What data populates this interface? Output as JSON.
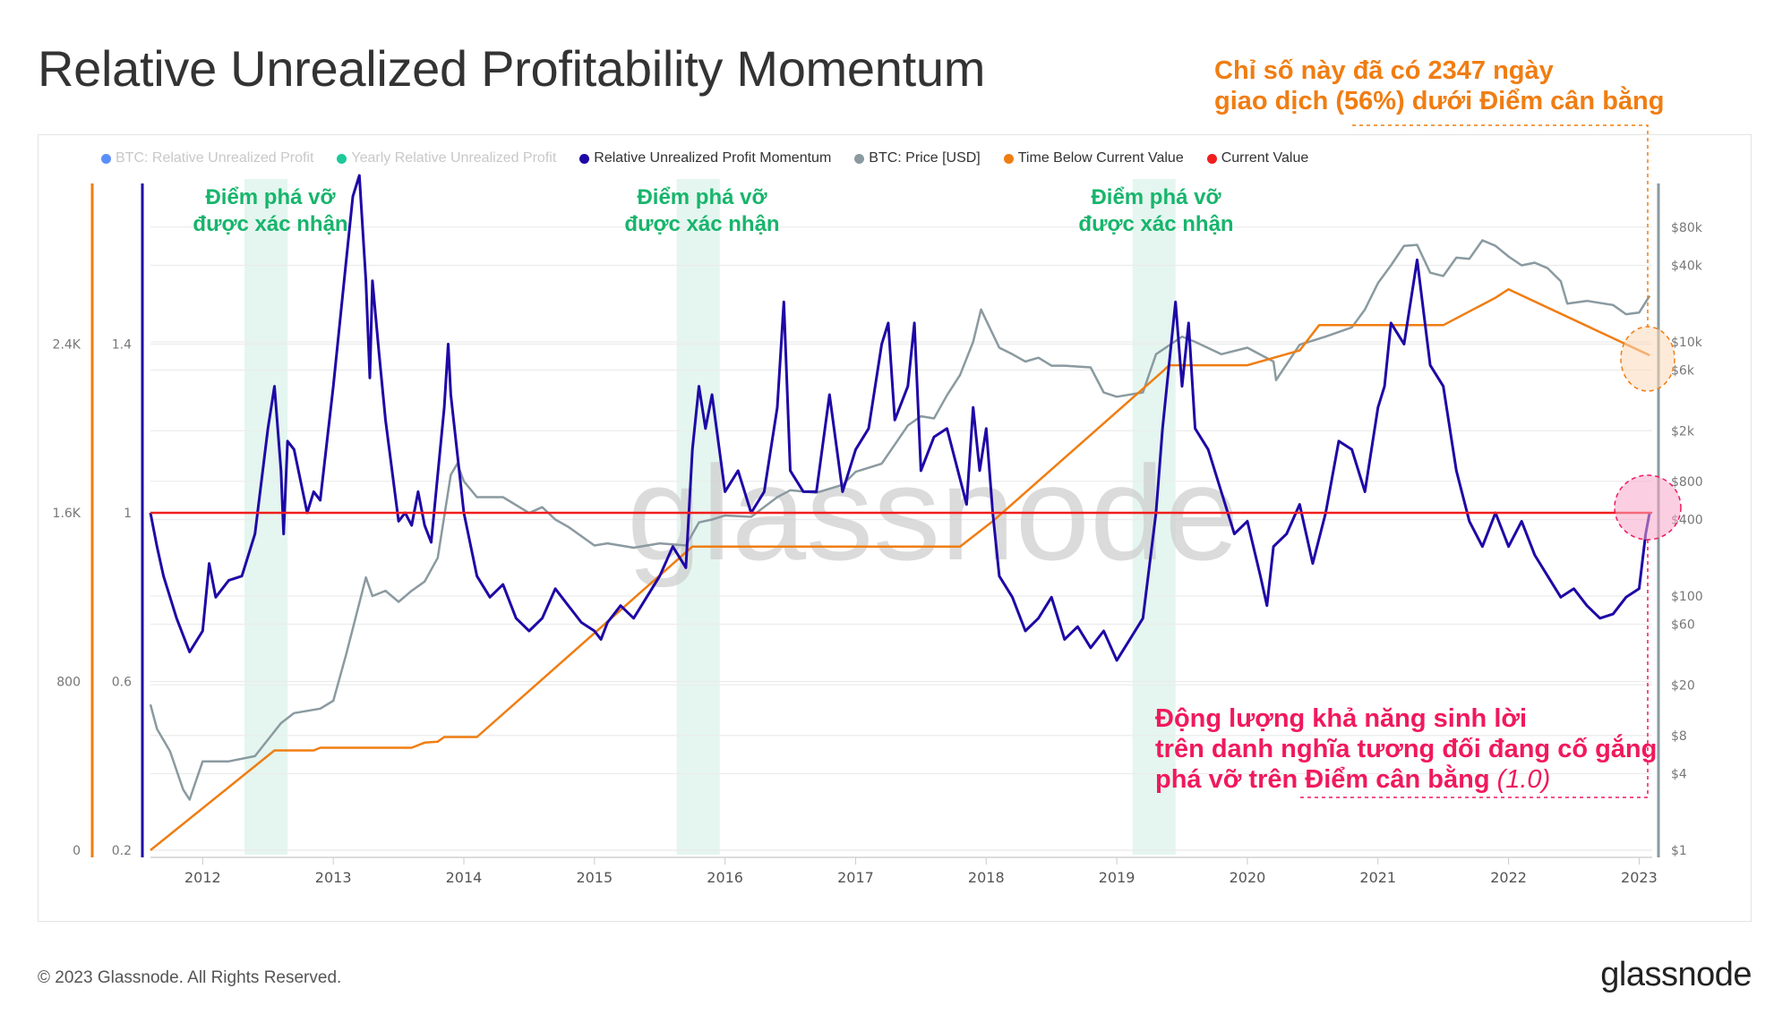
{
  "title": "Relative Unrealized Profitability Momentum",
  "legend": [
    {
      "label": "BTC: Relative Unrealized Profit",
      "color": "#5b8ff9",
      "active": false
    },
    {
      "label": "Yearly Relative Unrealized Profit",
      "color": "#1ec99a",
      "active": false
    },
    {
      "label": "Relative Unrealized Profit Momentum",
      "color": "#1e08a6",
      "active": true
    },
    {
      "label": "BTC: Price [USD]",
      "color": "#8a9aa0",
      "active": true
    },
    {
      "label": "Time Below Current Value",
      "color": "#f07d12",
      "active": true
    },
    {
      "label": "Current Value",
      "color": "#f01e1e",
      "active": true
    }
  ],
  "annotations": {
    "orange_line1": "Chỉ số này đã có 2347 ngày",
    "orange_line2": "giao dịch (56%) dưới Điểm cân bằng",
    "green_line1": "Điểm phá vỡ",
    "green_line2": "được xác nhận",
    "pink_line1": "Động lượng khả năng sinh lời",
    "pink_line2": "trên danh nghĩa tương đối đang cố gắng",
    "pink_line3": "phá vỡ trên Điểm cân bằng",
    "pink_value": "(1.0)"
  },
  "watermark": "glassnode",
  "footer": {
    "copyright": "© 2023 Glassnode. All Rights Reserved.",
    "brand": "glassnode"
  },
  "chart_data": {
    "type": "line",
    "title": "Relative Unrealized Profitability Momentum",
    "x_range": [
      2011.6,
      2023.1
    ],
    "x_ticks": [
      "2012",
      "2013",
      "2014",
      "2015",
      "2016",
      "2017",
      "2018",
      "2019",
      "2020",
      "2021",
      "2022",
      "2023"
    ],
    "axes": {
      "left_outer": {
        "series": "Time Below Current Value",
        "range": [
          0,
          3000
        ],
        "ticks": [
          {
            "v": 0,
            "label": "0"
          },
          {
            "v": 800,
            "label": "800"
          },
          {
            "v": 1600,
            "label": "1.6K"
          },
          {
            "v": 2400,
            "label": "2.4K"
          }
        ]
      },
      "left_inner": {
        "series": "Relative Unrealized Profit Momentum",
        "range": [
          0.2,
          1.9
        ],
        "ticks": [
          {
            "v": 0.2,
            "label": "0.2"
          },
          {
            "v": 0.6,
            "label": "0.6"
          },
          {
            "v": 1,
            "label": "1"
          },
          {
            "v": 1.4,
            "label": "1.4"
          }
        ]
      },
      "right": {
        "series": "BTC: Price [USD]",
        "scale": "log",
        "range": [
          1,
          150000
        ],
        "ticks": [
          {
            "v": 1,
            "label": "$1"
          },
          {
            "v": 4,
            "label": "$4"
          },
          {
            "v": 8,
            "label": "$8"
          },
          {
            "v": 20,
            "label": "$20"
          },
          {
            "v": 60,
            "label": "$60"
          },
          {
            "v": 100,
            "label": "$100"
          },
          {
            "v": 400,
            "label": "$400"
          },
          {
            "v": 800,
            "label": "$800"
          },
          {
            "v": 2000,
            "label": "$2k"
          },
          {
            "v": 6000,
            "label": "$6k"
          },
          {
            "v": 10000,
            "label": "$10k"
          },
          {
            "v": 40000,
            "label": "$40k"
          },
          {
            "v": 80000,
            "label": "$80k"
          }
        ]
      }
    },
    "current_value": 1.0,
    "breakout_bands": [
      [
        2012.32,
        2012.65
      ],
      [
        2015.63,
        2015.96
      ],
      [
        2019.12,
        2019.45
      ]
    ],
    "series": [
      {
        "name": "Relative Unrealized Profit Momentum",
        "axis": "left_inner",
        "color": "#1e08a6",
        "x": [
          2011.6,
          2011.65,
          2011.7,
          2011.8,
          2011.9,
          2012.0,
          2012.05,
          2012.1,
          2012.2,
          2012.3,
          2012.4,
          2012.5,
          2012.55,
          2012.6,
          2012.62,
          2012.65,
          2012.7,
          2012.8,
          2012.85,
          2012.9,
          2013.0,
          2013.1,
          2013.15,
          2013.2,
          2013.25,
          2013.28,
          2013.3,
          2013.35,
          2013.4,
          2013.5,
          2013.55,
          2013.6,
          2013.65,
          2013.7,
          2013.75,
          2013.85,
          2013.88,
          2013.9,
          2014.0,
          2014.1,
          2014.2,
          2014.3,
          2014.4,
          2014.5,
          2014.6,
          2014.7,
          2014.8,
          2014.9,
          2015.0,
          2015.05,
          2015.1,
          2015.2,
          2015.3,
          2015.4,
          2015.5,
          2015.6,
          2015.7,
          2015.75,
          2015.8,
          2015.85,
          2015.9,
          2016.0,
          2016.1,
          2016.2,
          2016.3,
          2016.4,
          2016.45,
          2016.5,
          2016.6,
          2016.7,
          2016.8,
          2016.9,
          2017.0,
          2017.1,
          2017.2,
          2017.25,
          2017.3,
          2017.4,
          2017.45,
          2017.5,
          2017.6,
          2017.7,
          2017.8,
          2017.85,
          2017.9,
          2017.95,
          2018.0,
          2018.05,
          2018.1,
          2018.2,
          2018.3,
          2018.4,
          2018.5,
          2018.6,
          2018.7,
          2018.8,
          2018.9,
          2019.0,
          2019.1,
          2019.2,
          2019.3,
          2019.35,
          2019.4,
          2019.45,
          2019.5,
          2019.55,
          2019.6,
          2019.7,
          2019.8,
          2019.9,
          2020.0,
          2020.1,
          2020.15,
          2020.2,
          2020.3,
          2020.4,
          2020.5,
          2020.6,
          2020.7,
          2020.8,
          2020.9,
          2021.0,
          2021.05,
          2021.1,
          2021.2,
          2021.3,
          2021.4,
          2021.5,
          2021.6,
          2021.7,
          2021.8,
          2021.9,
          2022.0,
          2022.1,
          2022.2,
          2022.3,
          2022.4,
          2022.5,
          2022.6,
          2022.7,
          2022.8,
          2022.9,
          2023.0,
          2023.05,
          2023.08
        ],
        "y": [
          1.0,
          0.92,
          0.85,
          0.75,
          0.67,
          0.72,
          0.88,
          0.8,
          0.84,
          0.85,
          0.95,
          1.2,
          1.3,
          1.1,
          0.95,
          1.17,
          1.15,
          1.0,
          1.05,
          1.03,
          1.3,
          1.6,
          1.75,
          1.8,
          1.55,
          1.32,
          1.55,
          1.38,
          1.22,
          0.98,
          1.0,
          0.97,
          1.05,
          0.97,
          0.93,
          1.25,
          1.4,
          1.28,
          1.0,
          0.85,
          0.8,
          0.83,
          0.75,
          0.72,
          0.75,
          0.82,
          0.78,
          0.74,
          0.72,
          0.7,
          0.74,
          0.78,
          0.75,
          0.8,
          0.85,
          0.92,
          0.87,
          1.15,
          1.3,
          1.2,
          1.28,
          1.05,
          1.1,
          1.0,
          1.05,
          1.25,
          1.5,
          1.1,
          1.05,
          1.05,
          1.28,
          1.05,
          1.15,
          1.2,
          1.4,
          1.45,
          1.22,
          1.3,
          1.45,
          1.1,
          1.18,
          1.2,
          1.08,
          1.02,
          1.25,
          1.1,
          1.2,
          1.0,
          0.85,
          0.8,
          0.72,
          0.75,
          0.8,
          0.7,
          0.73,
          0.68,
          0.72,
          0.65,
          0.7,
          0.75,
          1.0,
          1.2,
          1.35,
          1.5,
          1.3,
          1.45,
          1.2,
          1.15,
          1.05,
          0.95,
          0.98,
          0.85,
          0.78,
          0.92,
          0.95,
          1.02,
          0.88,
          1.0,
          1.17,
          1.15,
          1.05,
          1.25,
          1.3,
          1.45,
          1.4,
          1.6,
          1.35,
          1.3,
          1.1,
          0.98,
          0.92,
          1.0,
          0.92,
          0.98,
          0.9,
          0.85,
          0.8,
          0.82,
          0.78,
          0.75,
          0.76,
          0.8,
          0.82,
          0.95,
          1.0
        ]
      },
      {
        "name": "BTC: Price [USD]",
        "axis": "right",
        "color": "#8a9aa0",
        "x": [
          2011.6,
          2011.65,
          2011.75,
          2011.85,
          2011.9,
          2012.0,
          2012.1,
          2012.2,
          2012.4,
          2012.6,
          2012.7,
          2012.9,
          2013.0,
          2013.1,
          2013.25,
          2013.3,
          2013.4,
          2013.5,
          2013.6,
          2013.7,
          2013.8,
          2013.9,
          2013.95,
          2014.0,
          2014.1,
          2014.3,
          2014.5,
          2014.6,
          2014.7,
          2014.8,
          2015.0,
          2015.1,
          2015.3,
          2015.5,
          2015.7,
          2015.8,
          2015.9,
          2016.0,
          2016.2,
          2016.4,
          2016.5,
          2016.7,
          2016.9,
          2017.0,
          2017.2,
          2017.4,
          2017.5,
          2017.6,
          2017.7,
          2017.8,
          2017.9,
          2017.96,
          2018.1,
          2018.2,
          2018.3,
          2018.4,
          2018.5,
          2018.6,
          2018.8,
          2018.9,
          2019.0,
          2019.2,
          2019.3,
          2019.5,
          2019.6,
          2019.8,
          2020.0,
          2020.2,
          2020.22,
          2020.4,
          2020.6,
          2020.8,
          2020.9,
          2021.0,
          2021.1,
          2021.2,
          2021.3,
          2021.4,
          2021.5,
          2021.6,
          2021.7,
          2021.8,
          2021.9,
          2022.0,
          2022.1,
          2022.2,
          2022.3,
          2022.4,
          2022.45,
          2022.6,
          2022.8,
          2022.9,
          2023.0,
          2023.08
        ],
        "y": [
          14,
          9,
          6,
          3,
          2.5,
          5,
          5,
          5,
          5.5,
          10,
          12,
          13,
          15,
          35,
          140,
          100,
          110,
          90,
          110,
          130,
          200,
          900,
          1100,
          800,
          600,
          600,
          450,
          500,
          400,
          350,
          250,
          260,
          240,
          260,
          250,
          380,
          400,
          430,
          420,
          600,
          680,
          650,
          750,
          950,
          1100,
          2200,
          2600,
          2500,
          3800,
          5500,
          10000,
          18000,
          9000,
          8000,
          7000,
          7500,
          6500,
          6500,
          6300,
          4000,
          3700,
          4000,
          8000,
          11000,
          10000,
          8000,
          9000,
          7000,
          5000,
          9500,
          11000,
          13000,
          18000,
          29000,
          40000,
          57000,
          58000,
          35000,
          33000,
          46000,
          45000,
          63000,
          57000,
          47000,
          40000,
          42000,
          38000,
          30000,
          20000,
          21000,
          19500,
          16500,
          17000,
          23000
        ]
      },
      {
        "name": "Time Below Current Value",
        "axis": "left_outer",
        "color": "#f07d12",
        "x": [
          2011.6,
          2012.55,
          2012.85,
          2012.9,
          2013.6,
          2013.7,
          2013.8,
          2013.85,
          2014.1,
          2015.75,
          2017.8,
          2018.05,
          2019.35,
          2019.4,
          2020.0,
          2020.4,
          2020.55,
          2021.5,
          2021.9,
          2022.0,
          2023.08
        ],
        "y": [
          0,
          473,
          473,
          486,
          486,
          510,
          515,
          537,
          537,
          1440,
          1440,
          1560,
          2270,
          2300,
          2300,
          2370,
          2490,
          2490,
          2620,
          2660,
          2347
        ]
      }
    ]
  }
}
